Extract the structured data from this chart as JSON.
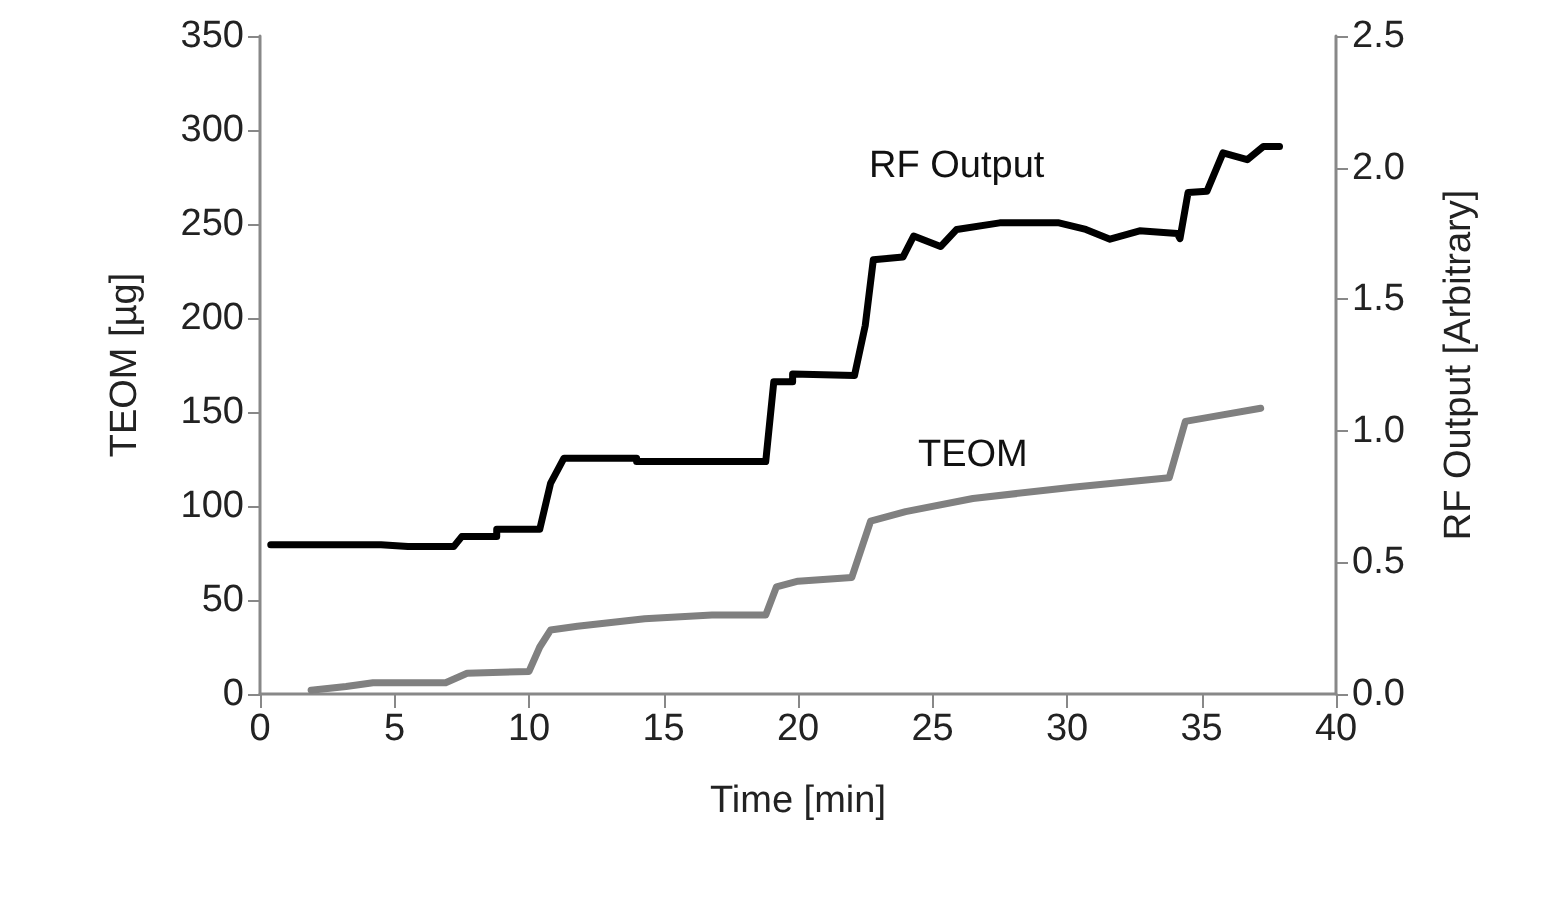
{
  "chart_data": {
    "type": "line",
    "xlabel": "Time [min]",
    "ylabel": "TEOM [µg]",
    "y2label": "RF Output [Arbitrary]",
    "xlim": [
      0,
      40
    ],
    "xticks": [
      0,
      5,
      10,
      15,
      20,
      25,
      30,
      35,
      40
    ],
    "ylim": [
      0,
      350
    ],
    "yticks": [
      0,
      50,
      100,
      150,
      200,
      250,
      300,
      350
    ],
    "y2lim": [
      0,
      2.5
    ],
    "y2ticks": [
      {
        "value": 0,
        "label": "0.0"
      },
      {
        "value": 0.5,
        "label": "0.5"
      },
      {
        "value": 1,
        "label": "1.0"
      },
      {
        "value": 1.5,
        "label": "1.5"
      },
      {
        "value": 2,
        "label": "2.0"
      },
      {
        "value": 2.5,
        "label": "2.5"
      }
    ],
    "grid": false,
    "legend": false,
    "marker": "none",
    "line_style": "solid",
    "series": [
      {
        "name": "RF Output",
        "color": "#000000",
        "axis": "y2",
        "x": [
          0.4,
          4.5,
          5.5,
          7.2,
          7.5,
          8.8,
          8.8,
          10.4,
          10.8,
          11.3,
          14.0,
          14.0,
          18.8,
          19.1,
          19.8,
          19.8,
          22.1,
          22.5,
          22.8,
          23.9,
          24.3,
          25.3,
          25.9,
          27.5,
          29.7,
          30.7,
          31.6,
          32.7,
          34.1,
          34.2,
          34.5,
          35.2,
          35.8,
          36.7,
          37.3,
          37.9
        ],
        "values": [
          0.567,
          0.567,
          0.56,
          0.56,
          0.598,
          0.598,
          0.626,
          0.626,
          0.8,
          0.896,
          0.896,
          0.883,
          0.883,
          1.186,
          1.186,
          1.216,
          1.21,
          1.4,
          1.65,
          1.66,
          1.74,
          1.7,
          1.765,
          1.79,
          1.79,
          1.765,
          1.728,
          1.76,
          1.75,
          1.73,
          1.905,
          1.91,
          2.056,
          2.03,
          2.08,
          2.08
        ]
      },
      {
        "name": "TEOM",
        "color": "#808080",
        "x": [
          1.9,
          3.2,
          4.2,
          6.9,
          7.7,
          10.0,
          10.4,
          10.8,
          11.8,
          14.3,
          16.8,
          18.8,
          19.2,
          20.0,
          22.0,
          22.7,
          24.0,
          26.5,
          30.2,
          33.8,
          34.4,
          35.2,
          37.2
        ],
        "values": [
          2,
          4,
          6,
          6,
          11,
          12,
          25,
          34,
          36,
          40,
          42,
          42,
          57,
          60,
          62,
          92,
          97,
          104,
          110,
          115,
          145,
          147,
          152
        ]
      }
    ]
  }
}
